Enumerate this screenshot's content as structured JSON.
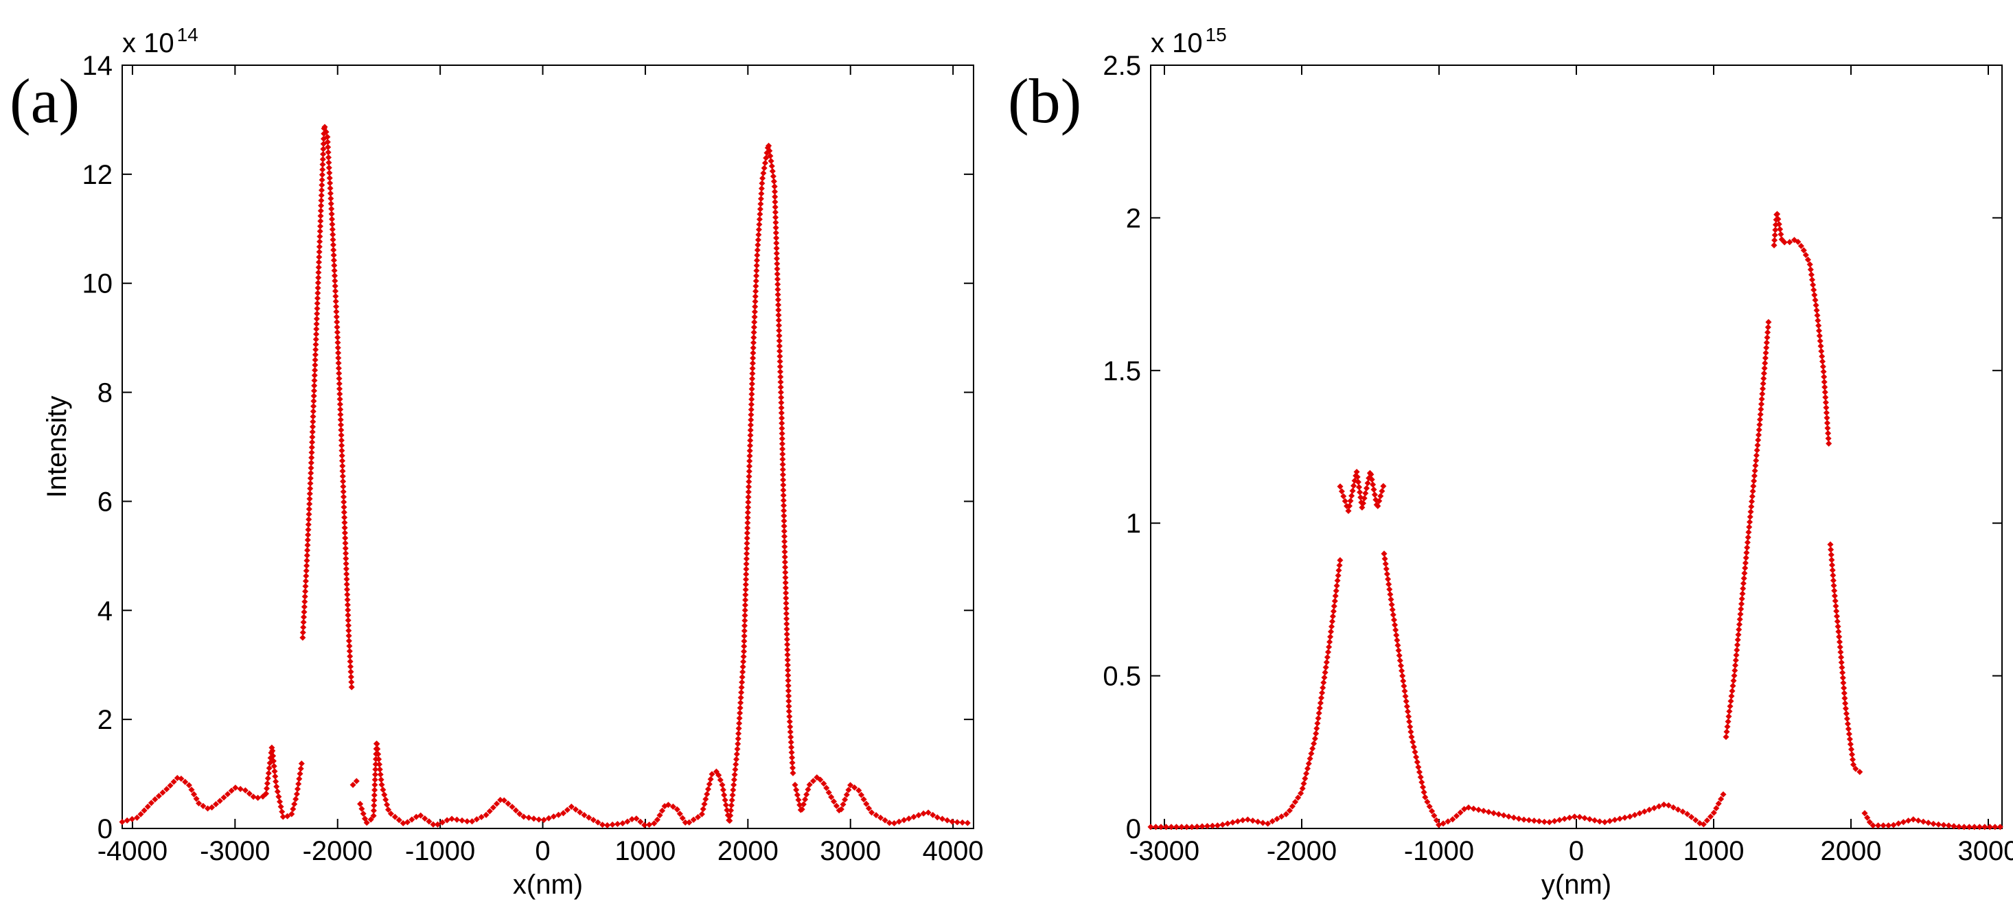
{
  "chart_data": [
    {
      "type": "scatter",
      "panel_label": "(a)",
      "xlabel": "x(nm)",
      "ylabel": "Intensity",
      "exponent_base": "x 10",
      "exponent_power": "14",
      "xlim": [
        -4100,
        4200
      ],
      "ylim": [
        0,
        14
      ],
      "xticks": [
        -4000,
        -3000,
        -2000,
        -1000,
        0,
        1000,
        2000,
        3000,
        4000
      ],
      "yticks": [
        0,
        2,
        4,
        6,
        8,
        10,
        12,
        14
      ],
      "marker_color": "#e00000",
      "series": [
        {
          "name": "Intensity",
          "curve": [
            [
              -4100,
              0.12
            ],
            [
              -3950,
              0.2
            ],
            [
              -3800,
              0.5
            ],
            [
              -3650,
              0.75
            ],
            [
              -3550,
              0.95
            ],
            [
              -3450,
              0.8
            ],
            [
              -3350,
              0.45
            ],
            [
              -3250,
              0.35
            ],
            [
              -3150,
              0.5
            ],
            [
              -3000,
              0.75
            ],
            [
              -2900,
              0.7
            ],
            [
              -2800,
              0.55
            ],
            [
              -2700,
              0.6
            ],
            [
              -2640,
              1.5
            ],
            [
              -2600,
              0.8
            ],
            [
              -2530,
              0.2
            ],
            [
              -2450,
              0.25
            ],
            [
              -2400,
              0.6
            ],
            [
              -2350,
              1.2
            ],
            null,
            [
              -2340,
              3.5
            ],
            [
              -2300,
              4.9
            ],
            [
              -2250,
              7.0
            ],
            [
              -2200,
              9.5
            ],
            [
              -2160,
              11.5
            ],
            [
              -2130,
              12.9
            ],
            [
              -2100,
              12.7
            ],
            [
              -2050,
              11.0
            ],
            [
              -2000,
              9.0
            ],
            [
              -1960,
              7.0
            ],
            [
              -1920,
              5.0
            ],
            [
              -1890,
              3.5
            ],
            [
              -1860,
              2.5
            ],
            null,
            [
              -1850,
              0.8
            ],
            [
              -1800,
              0.9
            ],
            null,
            [
              -1780,
              0.45
            ],
            [
              -1720,
              0.1
            ],
            [
              -1650,
              0.2
            ],
            [
              -1620,
              1.6
            ],
            [
              -1570,
              0.8
            ],
            [
              -1500,
              0.3
            ],
            [
              -1350,
              0.08
            ],
            [
              -1200,
              0.25
            ],
            [
              -1050,
              0.05
            ],
            [
              -900,
              0.18
            ],
            [
              -700,
              0.12
            ],
            [
              -550,
              0.25
            ],
            [
              -400,
              0.55
            ],
            [
              -300,
              0.4
            ],
            [
              -200,
              0.22
            ],
            [
              0,
              0.15
            ],
            [
              200,
              0.28
            ],
            [
              280,
              0.4
            ],
            [
              400,
              0.25
            ],
            [
              600,
              0.05
            ],
            [
              800,
              0.1
            ],
            [
              900,
              0.2
            ],
            [
              1000,
              0.05
            ],
            [
              1100,
              0.1
            ],
            [
              1200,
              0.45
            ],
            [
              1300,
              0.38
            ],
            [
              1400,
              0.08
            ],
            [
              1550,
              0.25
            ],
            [
              1650,
              1.0
            ],
            [
              1700,
              1.05
            ],
            [
              1750,
              0.8
            ],
            [
              1820,
              0.1
            ],
            [
              1850,
              0.6
            ],
            [
              1900,
              1.5
            ],
            [
              1960,
              3.2
            ],
            [
              2000,
              5.8
            ],
            [
              2050,
              8.7
            ],
            [
              2090,
              10.5
            ],
            [
              2140,
              11.9
            ],
            [
              2200,
              12.55
            ],
            [
              2230,
              12.2
            ],
            [
              2260,
              11.8
            ],
            [
              2290,
              10.0
            ],
            [
              2330,
              7.5
            ],
            [
              2360,
              5.0
            ],
            [
              2400,
              2.2
            ],
            [
              2440,
              1.0
            ],
            null,
            [
              2460,
              0.8
            ],
            [
              2520,
              0.3
            ],
            [
              2600,
              0.8
            ],
            [
              2680,
              0.95
            ],
            [
              2750,
              0.8
            ],
            [
              2820,
              0.55
            ],
            [
              2900,
              0.3
            ],
            [
              2950,
              0.55
            ],
            [
              3000,
              0.8
            ],
            [
              3080,
              0.7
            ],
            [
              3200,
              0.3
            ],
            [
              3400,
              0.08
            ],
            [
              3600,
              0.2
            ],
            [
              3750,
              0.3
            ],
            [
              3850,
              0.2
            ],
            [
              4000,
              0.12
            ],
            [
              4150,
              0.1
            ]
          ]
        }
      ]
    },
    {
      "type": "scatter",
      "panel_label": "(b)",
      "xlabel": "y(nm)",
      "ylabel": "",
      "exponent_base": "x 10",
      "exponent_power": "15",
      "xlim": [
        -3100,
        3100
      ],
      "ylim": [
        0,
        2.5
      ],
      "xticks": [
        -3000,
        -2000,
        -1000,
        0,
        1000,
        2000,
        3000
      ],
      "yticks": [
        0,
        0.5,
        1,
        1.5,
        2,
        2.5
      ],
      "ytick_labels": [
        "0",
        "0.5",
        "1",
        "1.5",
        "2",
        "2.5"
      ],
      "marker_color": "#e00000",
      "series": [
        {
          "name": "Intensity",
          "curve": [
            [
              -3100,
              0.005
            ],
            [
              -2800,
              0.005
            ],
            [
              -2600,
              0.01
            ],
            [
              -2400,
              0.03
            ],
            [
              -2250,
              0.015
            ],
            [
              -2100,
              0.05
            ],
            [
              -2000,
              0.12
            ],
            [
              -1900,
              0.3
            ],
            [
              -1800,
              0.6
            ],
            [
              -1720,
              0.88
            ],
            null,
            [
              -1720,
              1.12
            ],
            [
              -1660,
              1.04
            ],
            [
              -1600,
              1.17
            ],
            [
              -1560,
              1.05
            ],
            [
              -1500,
              1.17
            ],
            [
              -1450,
              1.05
            ],
            [
              -1400,
              1.13
            ],
            null,
            [
              -1400,
              0.9
            ],
            [
              -1300,
              0.6
            ],
            [
              -1200,
              0.3
            ],
            [
              -1100,
              0.1
            ],
            [
              -1000,
              0.01
            ],
            [
              -900,
              0.03
            ],
            [
              -800,
              0.07
            ],
            [
              -600,
              0.05
            ],
            [
              -400,
              0.03
            ],
            [
              -200,
              0.02
            ],
            [
              0,
              0.04
            ],
            [
              200,
              0.02
            ],
            [
              400,
              0.04
            ],
            [
              650,
              0.08
            ],
            [
              800,
              0.05
            ],
            [
              920,
              0.01
            ],
            [
              1000,
              0.05
            ],
            [
              1080,
              0.12
            ],
            null,
            [
              1090,
              0.3
            ],
            [
              1150,
              0.5
            ],
            [
              1250,
              0.95
            ],
            [
              1330,
              1.3
            ],
            [
              1400,
              1.66
            ],
            null,
            [
              1440,
              1.91
            ],
            [
              1460,
              2.02
            ],
            [
              1500,
              1.92
            ],
            [
              1550,
              1.92
            ],
            [
              1600,
              1.93
            ],
            [
              1650,
              1.9
            ],
            [
              1700,
              1.85
            ],
            [
              1750,
              1.7
            ],
            [
              1800,
              1.5
            ],
            [
              1840,
              1.25
            ],
            null,
            [
              1850,
              0.93
            ],
            [
              1880,
              0.77
            ],
            [
              1920,
              0.6
            ],
            [
              1960,
              0.4
            ],
            [
              2020,
              0.2
            ],
            [
              2080,
              0.18
            ],
            null,
            [
              2100,
              0.05
            ],
            [
              2150,
              0.01
            ],
            [
              2300,
              0.01
            ],
            [
              2450,
              0.03
            ],
            [
              2600,
              0.015
            ],
            [
              2800,
              0.005
            ],
            [
              3100,
              0.005
            ]
          ]
        }
      ]
    }
  ]
}
